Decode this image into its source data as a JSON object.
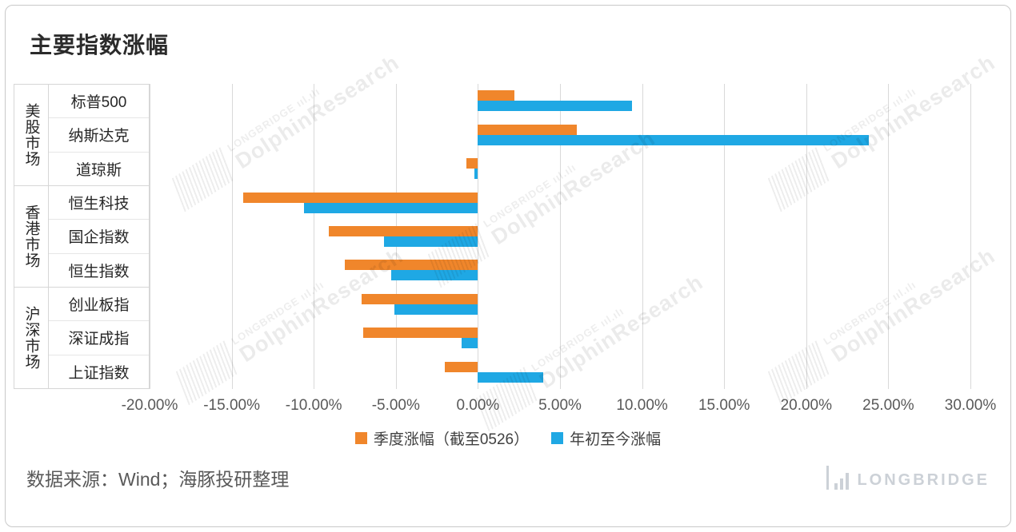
{
  "title": "主要指数涨幅",
  "source_note": "数据来源：Wind；海豚投研整理",
  "logo_text": "LONGBRIDGE",
  "watermark": {
    "brand": "LONGBRIDGE ııl.ılı",
    "name": "DolphinResearch"
  },
  "chart_data": {
    "type": "bar",
    "orientation": "horizontal",
    "title": "主要指数涨幅",
    "groups": [
      {
        "label": "美股市场",
        "categories": [
          "标普500",
          "纳斯达克",
          "道琼斯"
        ]
      },
      {
        "label": "香港市场",
        "categories": [
          "恒生科技",
          "国企指数",
          "恒生指数"
        ]
      },
      {
        "label": "沪深市场",
        "categories": [
          "创业板指",
          "深证成指",
          "上证指数"
        ]
      }
    ],
    "categories": [
      "标普500",
      "纳斯达克",
      "道琼斯",
      "恒生科技",
      "国企指数",
      "恒生指数",
      "创业板指",
      "深证成指",
      "上证指数"
    ],
    "series": [
      {
        "name": "季度涨幅（截至0526）",
        "color": "#F0862B",
        "values": [
          2.2,
          6.0,
          -0.7,
          -14.3,
          -9.1,
          -8.1,
          -7.1,
          -7.0,
          -2.0
        ]
      },
      {
        "name": "年初至今涨幅",
        "color": "#1FA8E4",
        "values": [
          9.4,
          23.8,
          -0.2,
          -10.6,
          -5.7,
          -5.3,
          -5.1,
          -1.0,
          4.0
        ]
      }
    ],
    "x_axis": {
      "min": -20,
      "max": 30,
      "step": 5,
      "unit": "%",
      "tick_labels": [
        "-20.00%",
        "-15.00%",
        "-10.00%",
        "-5.00%",
        "0.00%",
        "5.00%",
        "10.00%",
        "15.00%",
        "20.00%",
        "25.00%",
        "30.00%"
      ]
    },
    "grid": true,
    "legend_position": "bottom"
  }
}
